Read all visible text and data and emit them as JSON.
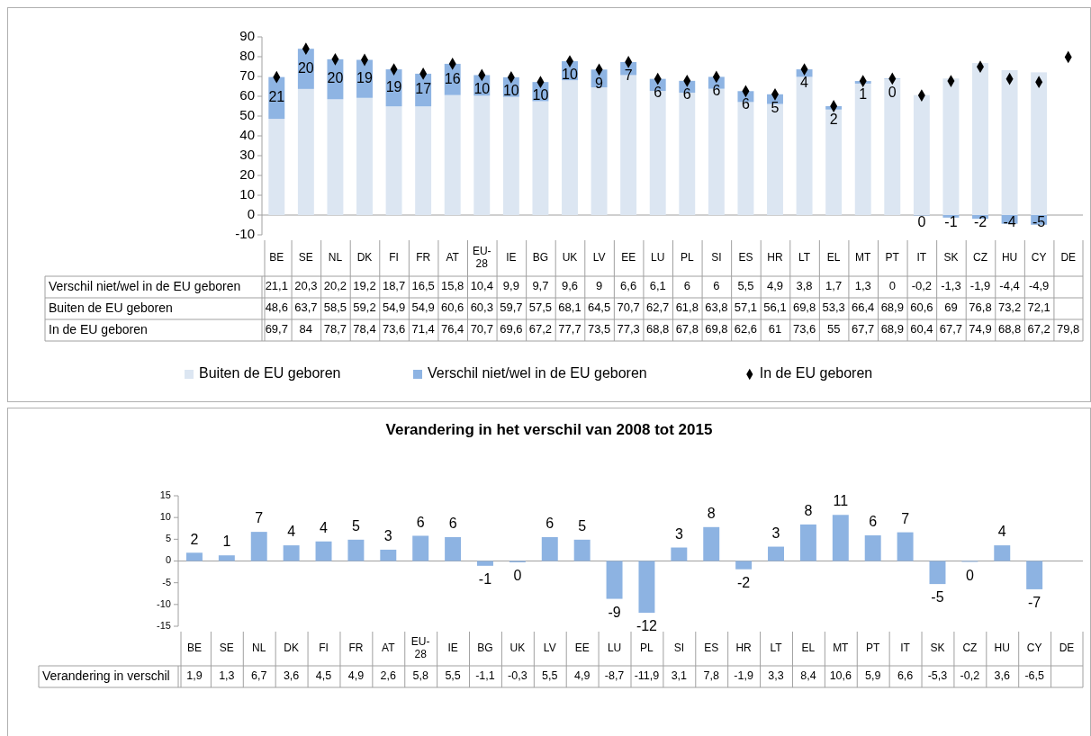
{
  "chart_data": [
    {
      "type": "bar",
      "stacked": true,
      "categories": [
        "BE",
        "SE",
        "NL",
        "DK",
        "FI",
        "FR",
        "AT",
        "EU-28",
        "IE",
        "BG",
        "UK",
        "LV",
        "EE",
        "LU",
        "PL",
        "SI",
        "ES",
        "HR",
        "LT",
        "EL",
        "MT",
        "PT",
        "IT",
        "SK",
        "CZ",
        "HU",
        "CY",
        "DE"
      ],
      "ylim": [
        -10,
        90
      ],
      "yticks": [
        -10,
        0,
        10,
        20,
        30,
        40,
        50,
        60,
        70,
        80,
        90
      ],
      "legend": "bottom",
      "series": [
        {
          "name": "Buiten de EU geboren",
          "color": "#dce6f2",
          "values": [
            48.6,
            63.7,
            58.5,
            59.2,
            54.9,
            54.9,
            60.6,
            60.3,
            59.7,
            57.5,
            68.1,
            64.5,
            70.7,
            62.7,
            61.8,
            63.8,
            57.1,
            56.1,
            69.8,
            53.3,
            66.4,
            68.9,
            60.6,
            69,
            76.8,
            73.2,
            72.1,
            null
          ],
          "value_labels": [
            "48,6",
            "63,7",
            "58,5",
            "59,2",
            "54,9",
            "54,9",
            "60,6",
            "60,3",
            "59,7",
            "57,5",
            "68,1",
            "64,5",
            "70,7",
            "62,7",
            "61,8",
            "63,8",
            "57,1",
            "56,1",
            "69,8",
            "53,3",
            "66,4",
            "68,9",
            "60,6",
            "69",
            "76,8",
            "73,2",
            "72,1",
            null
          ]
        },
        {
          "name": "Verschil niet/wel in de EU geboren",
          "color": "#8eb4e3",
          "values": [
            21.1,
            20.3,
            20.2,
            19.2,
            18.7,
            16.5,
            15.8,
            10.4,
            9.9,
            9.7,
            9.6,
            9,
            6.6,
            6.1,
            6,
            6,
            5.5,
            4.9,
            3.8,
            1.7,
            1.3,
            0,
            -0.2,
            -1.3,
            -1.9,
            -4.4,
            -4.9,
            null
          ],
          "value_labels": [
            "21,1",
            "20,3",
            "20,2",
            "19,2",
            "18,7",
            "16,5",
            "15,8",
            "10,4",
            "9,9",
            "9,7",
            "9,6",
            "9",
            "6,6",
            "6,1",
            "6",
            "6",
            "5,5",
            "4,9",
            "3,8",
            "1,7",
            "1,3",
            "0",
            "-0,2",
            "-1,3",
            "-1,9",
            "-4,4",
            "-4,9",
            null
          ]
        },
        {
          "name": "In de EU geboren",
          "type": "scatter",
          "marker": "diamond",
          "color": "#000000",
          "x": [
            "BE",
            "SE",
            "NL",
            "DK",
            "FI",
            "FR",
            "AT",
            "EU-28",
            "IE",
            "BG",
            "UK",
            "LV",
            "EE",
            "LU",
            "PL",
            "SI",
            "ES",
            "HR",
            "LT",
            "EL",
            "MT",
            "PT",
            "IT",
            "SK",
            "CZ",
            "HU",
            "CY",
            "DE"
          ],
          "values": [
            69.7,
            84,
            78.7,
            78.4,
            73.6,
            71.4,
            76.4,
            70.7,
            69.6,
            67.2,
            77.7,
            73.5,
            77.3,
            68.8,
            67.8,
            69.8,
            62.6,
            61,
            73.6,
            55,
            67.7,
            68.9,
            60.4,
            67.7,
            74.9,
            68.8,
            67.2,
            79.8
          ],
          "value_labels": [
            "69,7",
            "84",
            "78,7",
            "78,4",
            "73,6",
            "71,4",
            "76,4",
            "70,7",
            "69,6",
            "67,2",
            "77,7",
            "73,5",
            "77,3",
            "68,8",
            "67,8",
            "69,8",
            "62,6",
            "61",
            "73,6",
            "55",
            "67,7",
            "68,9",
            "60,4",
            "67,7",
            "74,9",
            "68,8",
            "67,2",
            "79,8"
          ]
        }
      ],
      "annotations": [
        {
          "text": "21",
          "x": "BE",
          "y": 69.7
        },
        {
          "text": "20",
          "x": "SE",
          "y": 84
        },
        {
          "text": "20",
          "x": "NL",
          "y": 78.7
        },
        {
          "text": "19",
          "x": "DK",
          "y": 78.4
        },
        {
          "text": "19",
          "x": "FI",
          "y": 73.6
        },
        {
          "text": "17",
          "x": "FR",
          "y": 71.4
        },
        {
          "text": "16",
          "x": "AT",
          "y": 76.4
        },
        {
          "text": "10",
          "x": "EU-28",
          "y": 70.7
        },
        {
          "text": "10",
          "x": "IE",
          "y": 69.6
        },
        {
          "text": "10",
          "x": "BG",
          "y": 67.2
        },
        {
          "text": "10",
          "x": "UK",
          "y": 77.7
        },
        {
          "text": "9",
          "x": "LV",
          "y": 73.5
        },
        {
          "text": "7",
          "x": "EE",
          "y": 77.3
        },
        {
          "text": "6",
          "x": "LU",
          "y": 68.8
        },
        {
          "text": "6",
          "x": "PL",
          "y": 67.8
        },
        {
          "text": "6",
          "x": "SI",
          "y": 69.8
        },
        {
          "text": "6",
          "x": "ES",
          "y": 62.6
        },
        {
          "text": "5",
          "x": "HR",
          "y": 61
        },
        {
          "text": "4",
          "x": "LT",
          "y": 73.6
        },
        {
          "text": "2",
          "x": "EL",
          "y": 55
        },
        {
          "text": "1",
          "x": "MT",
          "y": 67.7
        },
        {
          "text": "0",
          "x": "PT",
          "y": 68.9
        },
        {
          "text": "0",
          "x": "IT",
          "y": -0.2
        },
        {
          "text": "-1",
          "x": "SK",
          "y": -1.3
        },
        {
          "text": "-2",
          "x": "CZ",
          "y": -1.9
        },
        {
          "text": "-4",
          "x": "HU",
          "y": -4.4
        },
        {
          "text": "-5",
          "x": "CY",
          "y": -4.9
        }
      ]
    },
    {
      "type": "bar",
      "title": "Verandering in het verschil van 2008 tot 2015",
      "categories": [
        "BE",
        "SE",
        "NL",
        "DK",
        "FI",
        "FR",
        "AT",
        "EU-28",
        "IE",
        "BG",
        "UK",
        "LV",
        "EE",
        "LU",
        "PL",
        "SI",
        "ES",
        "HR",
        "LT",
        "EL",
        "MT",
        "PT",
        "IT",
        "SK",
        "CZ",
        "HU",
        "CY",
        "DE"
      ],
      "ylim": [
        -15,
        15
      ],
      "yticks": [
        -15,
        -10,
        -5,
        0,
        5,
        10,
        15
      ],
      "series": [
        {
          "name": "Verandering in verschil",
          "color": "#8db3e2",
          "values": [
            1.9,
            1.3,
            6.7,
            3.6,
            4.5,
            4.9,
            2.6,
            5.8,
            5.5,
            -1.1,
            -0.3,
            5.5,
            4.9,
            -8.7,
            -11.9,
            3.1,
            7.8,
            -1.9,
            3.3,
            8.4,
            10.6,
            5.9,
            6.6,
            -5.3,
            -0.2,
            3.6,
            -6.5,
            null
          ],
          "value_labels": [
            "1,9",
            "1,3",
            "6,7",
            "3,6",
            "4,5",
            "4,9",
            "2,6",
            "5,8",
            "5,5",
            "-1,1",
            "-0,3",
            "5,5",
            "4,9",
            "-8,7",
            "-11,9",
            "3,1",
            "7,8",
            "-1,9",
            "3,3",
            "8,4",
            "10,6",
            "5,9",
            "6,6",
            "-5,3",
            "-0,2",
            "3,6",
            "-6,5",
            null
          ]
        }
      ],
      "annotations": [
        {
          "text": "2",
          "x": "BE",
          "y": 1.9
        },
        {
          "text": "1",
          "x": "SE",
          "y": 1.3
        },
        {
          "text": "7",
          "x": "NL",
          "y": 6.7
        },
        {
          "text": "4",
          "x": "DK",
          "y": 3.6
        },
        {
          "text": "4",
          "x": "FI",
          "y": 4.5
        },
        {
          "text": "5",
          "x": "FR",
          "y": 4.9
        },
        {
          "text": "3",
          "x": "AT",
          "y": 2.6
        },
        {
          "text": "6",
          "x": "EU-28",
          "y": 5.8
        },
        {
          "text": "6",
          "x": "IE",
          "y": 5.5
        },
        {
          "text": "-1",
          "x": "BG",
          "y": -1.1
        },
        {
          "text": "0",
          "x": "UK",
          "y": -0.3
        },
        {
          "text": "6",
          "x": "LV",
          "y": 5.5
        },
        {
          "text": "5",
          "x": "EE",
          "y": 4.9
        },
        {
          "text": "-9",
          "x": "LU",
          "y": -8.7
        },
        {
          "text": "-12",
          "x": "PL",
          "y": -11.9
        },
        {
          "text": "3",
          "x": "SI",
          "y": 3.1
        },
        {
          "text": "8",
          "x": "ES",
          "y": 7.8
        },
        {
          "text": "-2",
          "x": "HR",
          "y": -1.9
        },
        {
          "text": "3",
          "x": "LT",
          "y": 3.3
        },
        {
          "text": "8",
          "x": "EL",
          "y": 8.4
        },
        {
          "text": "11",
          "x": "MT",
          "y": 10.6
        },
        {
          "text": "6",
          "x": "PT",
          "y": 5.9
        },
        {
          "text": "7",
          "x": "IT",
          "y": 6.6
        },
        {
          "text": "-5",
          "x": "SK",
          "y": -5.3
        },
        {
          "text": "0",
          "x": "CZ",
          "y": -0.2
        },
        {
          "text": "4",
          "x": "HU",
          "y": 3.6
        },
        {
          "text": "-7",
          "x": "CY",
          "y": -6.5
        }
      ]
    }
  ]
}
